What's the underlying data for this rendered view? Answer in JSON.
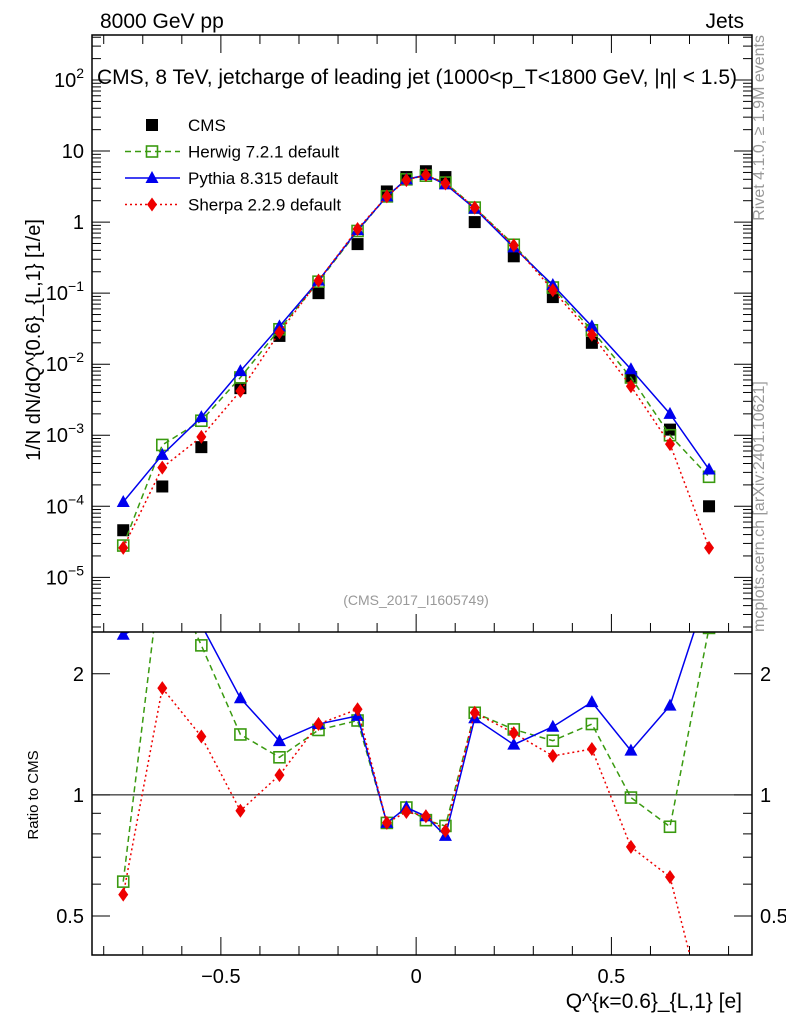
{
  "header": {
    "left": "8000 GeV pp",
    "right": "Jets"
  },
  "side": {
    "rivet": "Rivet 4.1.0, ≥ 1.9M events",
    "mcplots": "mcplots.cern.ch [arXiv:2401.10621]"
  },
  "chart_data": {
    "type": "line",
    "title": "CMS, 8 TeV, jetcharge of leading jet (1000<p_T<1800 GeV, |η| < 1.5)",
    "analysis": "(CMS_2017_I1605749)",
    "xlabel": "Q^{κ=0.6}_{L,1} [e]",
    "ylabel": "1/N dN/dQ^{0.6}_{L,1} [1/e]",
    "ratio_ylabel": "Ratio to CMS",
    "xlim": [
      -0.83,
      0.86
    ],
    "ylim": [
      1.7e-06,
      430
    ],
    "ratio_ylim": [
      0.4,
      2.54
    ],
    "yscale": "log",
    "xticks": [
      "-0.5",
      "0",
      "0.5"
    ],
    "yticks": [
      "10^2",
      "10",
      "1",
      "10^-1",
      "10^-2",
      "10^-3",
      "10^-4",
      "10^-5"
    ],
    "ratio_yticks": [
      "0.5",
      "1",
      "2"
    ],
    "legend_position": "top-left",
    "x": [
      -0.75,
      -0.65,
      -0.55,
      -0.45,
      -0.35,
      -0.25,
      -0.15,
      -0.075,
      -0.025,
      0.025,
      0.075,
      0.15,
      0.25,
      0.35,
      0.45,
      0.55,
      0.65,
      0.75
    ],
    "series": [
      {
        "name": "CMS",
        "color": "#000000",
        "values": [
          4.6e-05,
          0.00019,
          0.00068,
          0.0046,
          0.025,
          0.1,
          0.49,
          2.7,
          4.3,
          5.2,
          4.3,
          1.0,
          0.33,
          0.088,
          0.02,
          0.0066,
          0.0012,
          0.0001
        ]
      },
      {
        "name": "Herwig 7.2.1 default",
        "color": "#3a9a10",
        "values": [
          2.8e-05,
          0.00073,
          0.0016,
          0.0065,
          0.031,
          0.145,
          0.75,
          2.3,
          4.0,
          4.5,
          3.6,
          1.6,
          0.48,
          0.12,
          0.03,
          0.0065,
          0.001,
          0.00026
        ]
      },
      {
        "name": "Pythia 8.315 default",
        "color": "#0000ee",
        "values": [
          0.000115,
          0.00053,
          0.0018,
          0.008,
          0.034,
          0.15,
          0.77,
          2.3,
          4.0,
          4.6,
          3.4,
          1.55,
          0.44,
          0.13,
          0.034,
          0.0085,
          0.002,
          0.00033
        ]
      },
      {
        "name": "Sherpa 2.2.9 default",
        "color": "#ee0000",
        "values": [
          2.6e-05,
          0.00035,
          0.00095,
          0.0042,
          0.028,
          0.15,
          0.8,
          2.3,
          3.9,
          4.6,
          3.5,
          1.6,
          0.47,
          0.11,
          0.026,
          0.0049,
          0.00075,
          2.6e-05
        ]
      }
    ]
  }
}
